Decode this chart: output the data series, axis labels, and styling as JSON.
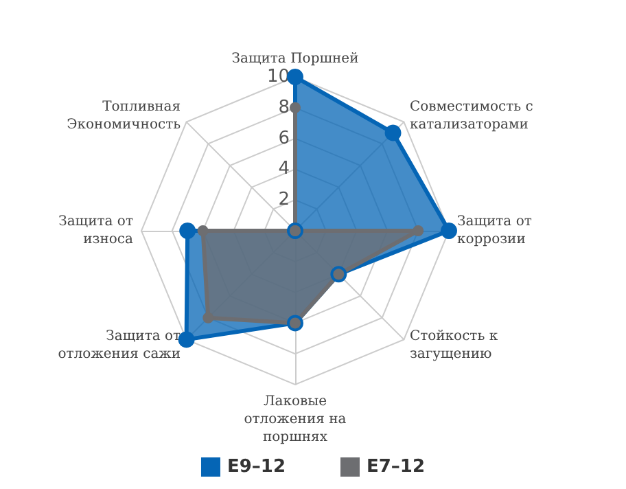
{
  "chart_data": {
    "type": "radar",
    "categories": [
      "Защита Поршней",
      "Совместимость с катализаторами",
      "Защита от коррозии",
      "Стойкость к загущению",
      "Лаковые отложения на поршнях",
      "Защита от отложения сажи",
      "Защита от износа",
      "Топливная Экономичность"
    ],
    "series": [
      {
        "name": "E9–12",
        "color": "#0565b5",
        "values": [
          10,
          9,
          10,
          4,
          6,
          10,
          7,
          0
        ]
      },
      {
        "name": "E7–12",
        "color": "#6d6e71",
        "values": [
          8,
          0,
          8,
          4,
          6,
          8,
          6,
          0
        ]
      }
    ],
    "ylim": [
      0,
      10
    ],
    "yticks": [
      2,
      4,
      6,
      8,
      10
    ],
    "legend": "bottom",
    "marker": "circle",
    "grid": true
  }
}
